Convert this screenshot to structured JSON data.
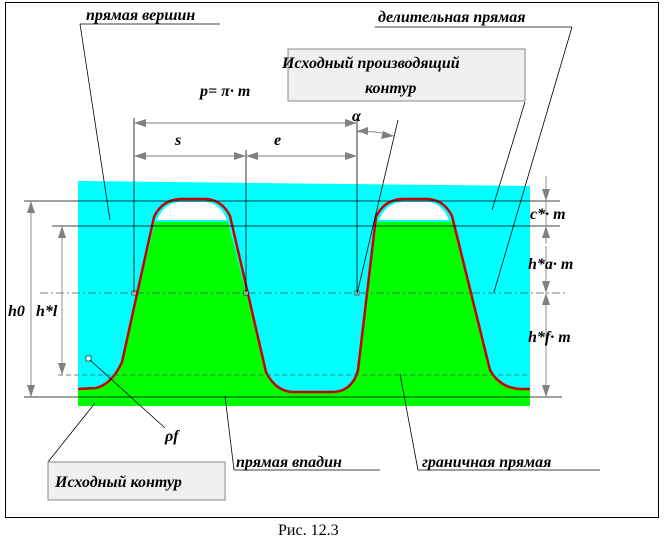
{
  "labels": {
    "pryamaya_vershin": "прямая вершин",
    "delitelnaya_pryamaya": "делительная прямая",
    "ishodny_proizvodyashchy_l1": "Исходный производящий",
    "ishodny_proizvodyashchy_l2": "контур",
    "pitch_formula": "p= π· m",
    "alpha": "α",
    "s": "s",
    "e": "e",
    "c_star_m": "c*· m",
    "h_a_m": "h*a· m",
    "h_f_m": "h*f· m",
    "h0": "h0",
    "h_l": "h*l",
    "rho_f": "ρf",
    "pryamaya_vpadin": "прямая впадин",
    "granichnaya_pryamaya": "граничная прямая",
    "ishodny_kontur": "Исходный контур",
    "caption": "Рис. 12.3"
  },
  "colors": {
    "cyan_region": "#00FFFF",
    "green_tooth": "#00FF00",
    "profile_line": "#CC0000",
    "label_box_fill": "#F0F0F0",
    "dimension_line": "#808080"
  }
}
